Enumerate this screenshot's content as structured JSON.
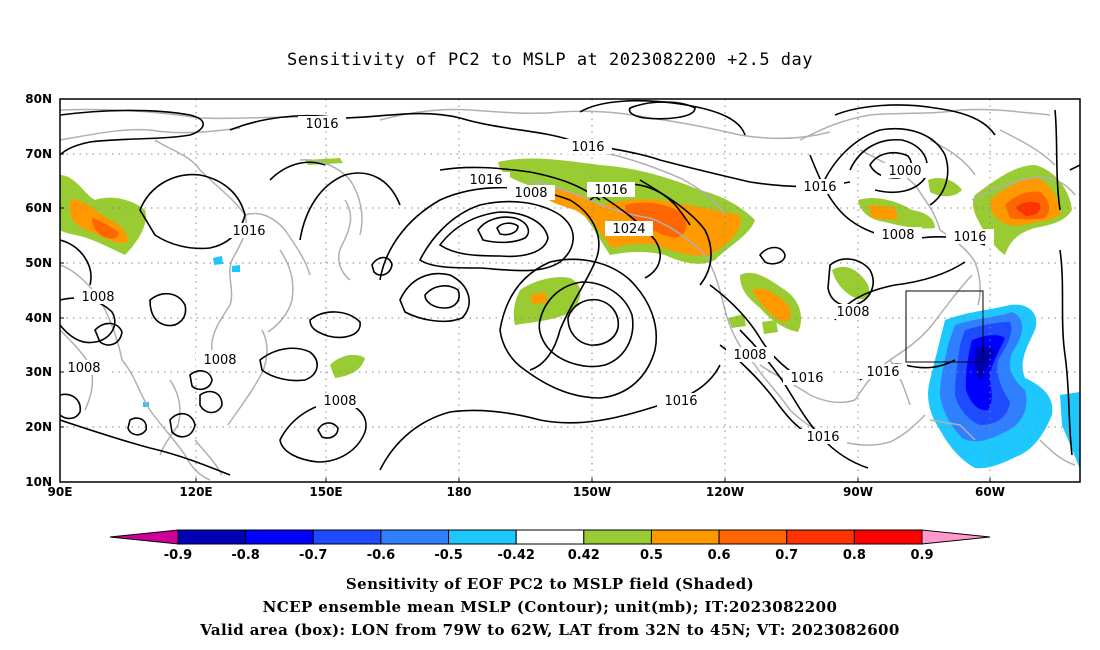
{
  "title": "Sensitivity of PC2 to MSLP at 2023082200 +2.5 day",
  "map": {
    "lon_labels": [
      "90E",
      "120E",
      "150E",
      "180",
      "150W",
      "120W",
      "90W",
      "60W"
    ],
    "lat_labels": [
      "80N",
      "70N",
      "60N",
      "50N",
      "40N",
      "30N",
      "20N",
      "10N"
    ],
    "contour_labels": [
      {
        "text": "1016",
        "name": "contour-label-1016-a"
      },
      {
        "text": "1016",
        "name": "contour-label-1016-b"
      },
      {
        "text": "1016",
        "name": "contour-label-1016-c"
      },
      {
        "text": "1016",
        "name": "contour-label-1016-d"
      },
      {
        "text": "1016",
        "name": "contour-label-1016-e"
      },
      {
        "text": "1016",
        "name": "contour-label-1016-f"
      },
      {
        "text": "1016",
        "name": "contour-label-1016-g"
      },
      {
        "text": "1016",
        "name": "contour-label-1016-h"
      },
      {
        "text": "1016",
        "name": "contour-label-1016-i"
      },
      {
        "text": "1016",
        "name": "contour-label-1016-j"
      },
      {
        "text": "1016",
        "name": "contour-label-1016-k"
      },
      {
        "text": "1008",
        "name": "contour-label-1008-a"
      },
      {
        "text": "1008",
        "name": "contour-label-1008-b"
      },
      {
        "text": "1008",
        "name": "contour-label-1008-c"
      },
      {
        "text": "1008",
        "name": "contour-label-1008-d"
      },
      {
        "text": "1008",
        "name": "contour-label-1008-e"
      },
      {
        "text": "1008",
        "name": "contour-label-1008-f"
      },
      {
        "text": "1008",
        "name": "contour-label-1008-g"
      },
      {
        "text": "1008",
        "name": "contour-label-1008-h"
      },
      {
        "text": "1024",
        "name": "contour-label-1024"
      },
      {
        "text": "1000",
        "name": "contour-label-1000"
      }
    ]
  },
  "colorbar": {
    "labels": [
      "-0.9",
      "-0.8",
      "-0.7",
      "-0.6",
      "-0.5",
      "-0.42",
      "0.42",
      "0.5",
      "0.6",
      "0.7",
      "0.8",
      "0.9"
    ],
    "colors": [
      "#cc0099",
      "#0000b4",
      "#0000ff",
      "#1f4bff",
      "#2f7fff",
      "#1ec8ff",
      "#ffffff",
      "#99cc33",
      "#ff9900",
      "#ff6600",
      "#ff3300",
      "#ff0000",
      "#ff99cc"
    ]
  },
  "footer": {
    "line1": "Sensitivity of EOF PC2 to MSLP field (Shaded)",
    "line2": "NCEP ensemble mean MSLP (Contour); unit(mb); IT:2023082200",
    "line3": "Valid area (box): LON from 79W to 62W, LAT from 32N to 45N; VT: 2023082600"
  }
}
